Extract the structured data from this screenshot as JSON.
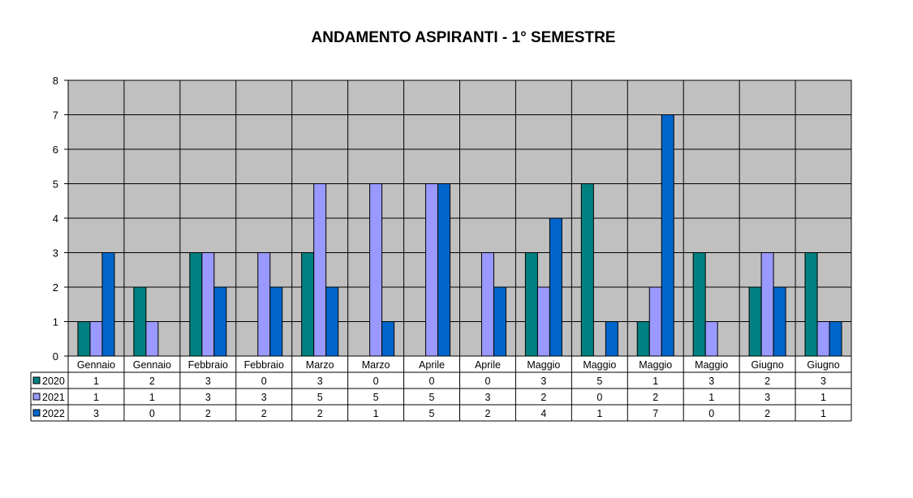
{
  "chart_data": {
    "type": "bar",
    "title": "ANDAMENTO ASPIRANTI  -  1° SEMESTRE",
    "xlabel": "",
    "ylabel": "",
    "ylim": [
      0,
      8
    ],
    "yticks": [
      0,
      1,
      2,
      3,
      4,
      5,
      6,
      7,
      8
    ],
    "grid": true,
    "legend_placement": "data-table-left",
    "plot_background": "#c0c0c0",
    "categories": [
      "Gennaio",
      "Gennaio",
      "Febbraio",
      "Febbraio",
      "Marzo",
      "Marzo",
      "Aprile",
      "Aprile",
      "Maggio",
      "Maggio",
      "Maggio",
      "Maggio",
      "Giugno",
      "Giugno"
    ],
    "series": [
      {
        "name": "2020",
        "color": "#008080",
        "values": [
          1,
          2,
          3,
          0,
          3,
          0,
          0,
          0,
          3,
          5,
          1,
          3,
          2,
          3
        ]
      },
      {
        "name": "2021",
        "color": "#9999ff",
        "values": [
          1,
          1,
          3,
          3,
          5,
          5,
          5,
          3,
          2,
          0,
          2,
          1,
          3,
          1
        ]
      },
      {
        "name": "2022",
        "color": "#0066cc",
        "values": [
          3,
          0,
          2,
          2,
          2,
          1,
          5,
          2,
          4,
          1,
          7,
          0,
          2,
          1
        ]
      }
    ]
  }
}
